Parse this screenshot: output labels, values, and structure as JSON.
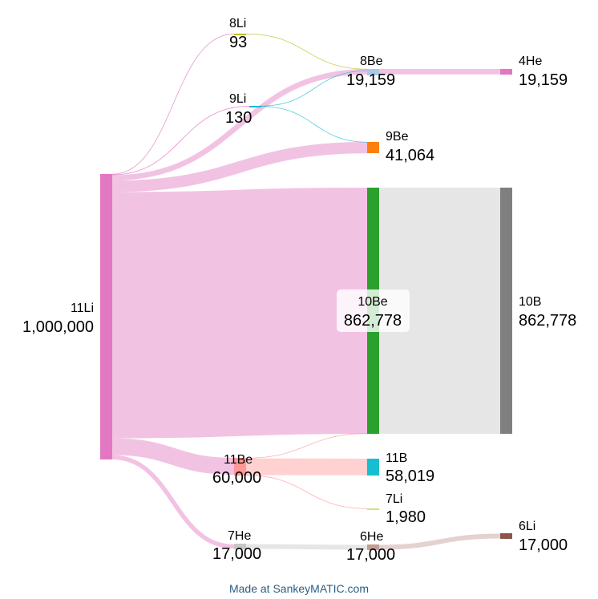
{
  "footer": "Made at SankeyMATIC.com",
  "nodes": {
    "n11Li": {
      "name": "11Li",
      "value": "1,000,000",
      "color": "#e377c2"
    },
    "n8Li": {
      "name": "8Li",
      "value": "93",
      "color": "#bcbd22"
    },
    "n9Li": {
      "name": "9Li",
      "value": "130",
      "color": "#17becf"
    },
    "n8Be": {
      "name": "8Be",
      "value": "19,159",
      "color": "#aec7e8"
    },
    "n4He": {
      "name": "4He",
      "value": "19,159",
      "color": "#e377c2"
    },
    "n9Be": {
      "name": "9Be",
      "value": "41,064",
      "color": "#ff7f0e"
    },
    "n10Be": {
      "name": "10Be",
      "value": "862,778",
      "color": "#2ca02c"
    },
    "n10B": {
      "name": "10B",
      "value": "862,778",
      "color": "#7f7f7f"
    },
    "n11Be": {
      "name": "11Be",
      "value": "60,000",
      "color": "#ff9896"
    },
    "n11B": {
      "name": "11B",
      "value": "58,019",
      "color": "#17becf"
    },
    "n7Li": {
      "name": "7Li",
      "value": "1,980",
      "color": "#dbdb8d"
    },
    "n7He": {
      "name": "7He",
      "value": "17,000",
      "color": "#c7c7c7"
    },
    "n6He": {
      "name": "6He",
      "value": "17,000",
      "color": "#c49c94"
    },
    "n6Li": {
      "name": "6Li",
      "value": "17,000",
      "color": "#8c564b"
    }
  },
  "flows": [
    {
      "source": "11Li",
      "target": "8Li",
      "value": 93,
      "color": "#e377c2"
    },
    {
      "source": "11Li",
      "target": "9Li",
      "value": 130,
      "color": "#e377c2"
    },
    {
      "source": "11Li",
      "target": "8Be",
      "value": 19000,
      "color": "#e377c2"
    },
    {
      "source": "11Li",
      "target": "9Be",
      "value": 41000,
      "color": "#e377c2"
    },
    {
      "source": "11Li",
      "target": "10Be",
      "value": 862778,
      "color": "#e377c2"
    },
    {
      "source": "11Li",
      "target": "11Be",
      "value": 60000,
      "color": "#e377c2"
    },
    {
      "source": "11Li",
      "target": "7He",
      "value": 17000,
      "color": "#e377c2"
    },
    {
      "source": "8Li",
      "target": "8Be",
      "value": 93,
      "color": "#bcbd22"
    },
    {
      "source": "9Li",
      "target": "8Be",
      "value": 66,
      "color": "#17becf"
    },
    {
      "source": "9Li",
      "target": "9Be",
      "value": 64,
      "color": "#17becf"
    },
    {
      "source": "8Be",
      "target": "4He",
      "value": 19159,
      "color": "#e377c2"
    },
    {
      "source": "10Be",
      "target": "10B",
      "value": 862778,
      "color": "#c7c7c7"
    },
    {
      "source": "11Be",
      "target": "10Be",
      "value": 1,
      "color": "#ff9896"
    },
    {
      "source": "11Be",
      "target": "11B",
      "value": 58019,
      "color": "#ff9896"
    },
    {
      "source": "11Be",
      "target": "7Li",
      "value": 1980,
      "color": "#ff9896"
    },
    {
      "source": "7He",
      "target": "6He",
      "value": 17000,
      "color": "#c7c7c7"
    },
    {
      "source": "6He",
      "target": "6Li",
      "value": 17000,
      "color": "#c49c94"
    }
  ]
}
